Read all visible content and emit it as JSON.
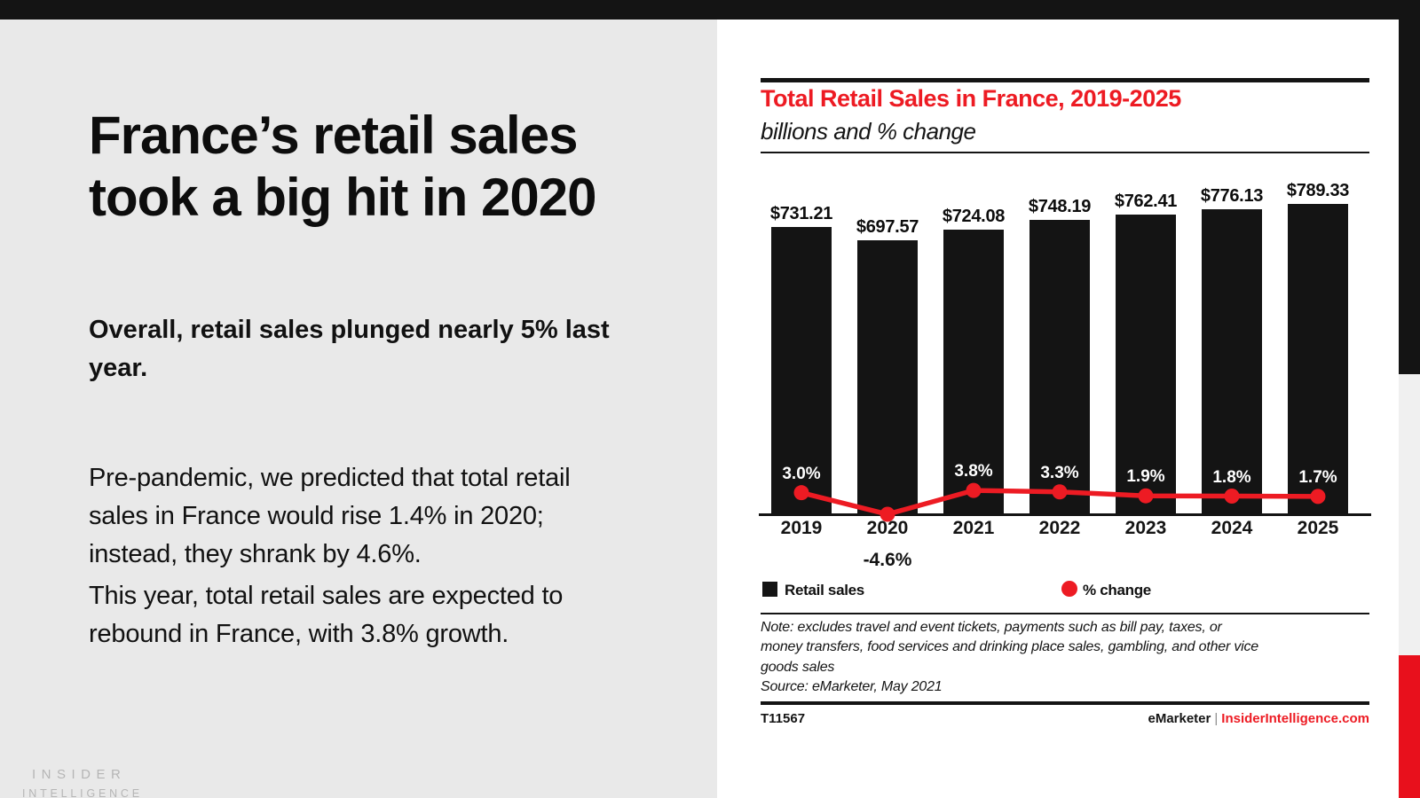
{
  "colors": {
    "accent_red": "#ed1b23",
    "corner_red": "#e8101c",
    "bar_black": "#141414",
    "left_bg": "#e9e9e9",
    "logo_gray": "#b5b5b5"
  },
  "slide": {
    "headline": "France’s retail sales\ntook a big hit in 2020",
    "lead": "Overall, retail sales plunged nearly 5% last\nyear.",
    "paragraph_1": "Pre-pandemic, we predicted that total retail\nsales in France would rise 1.4% in 2020;\ninstead, they shrank by 4.6%.",
    "paragraph_2": "This year, total retail sales are expected to\nrebound in France, with 3.8% growth."
  },
  "logo": {
    "line1": "INSIDER",
    "line2": "INTELLIGENCE"
  },
  "chart_data": {
    "type": "bar",
    "title": "Total Retail Sales in France, 2019-2025",
    "subtitle": "billions and % change",
    "categories": [
      "2019",
      "2020",
      "2021",
      "2022",
      "2023",
      "2024",
      "2025"
    ],
    "series": [
      {
        "name": "Retail sales",
        "type": "bar",
        "unit": "billions of USD",
        "values": [
          731.21,
          697.57,
          724.08,
          748.19,
          762.41,
          776.13,
          789.33
        ],
        "labels": [
          "$731.21",
          "$697.57",
          "$724.08",
          "$748.19",
          "$762.41",
          "$776.13",
          "$789.33"
        ]
      },
      {
        "name": "% change",
        "type": "line",
        "values": [
          3.0,
          -4.6,
          3.8,
          3.3,
          1.9,
          1.8,
          1.7
        ],
        "labels": [
          "3.0%",
          "-4.6%",
          "3.8%",
          "3.3%",
          "1.9%",
          "1.8%",
          "1.7%"
        ]
      }
    ],
    "legend": [
      {
        "label": "Retail sales",
        "marker": "black-square"
      },
      {
        "label": "% change",
        "marker": "red-dot"
      }
    ],
    "note": "Note: excludes travel and event tickets, payments such as bill pay, taxes, or\nmoney transfers, food services and drinking place sales, gambling, and other vice\ngoods sales\nSource: eMarketer, May 2021",
    "footer": {
      "chart_id": "T11567",
      "brand": "eMarketer",
      "divider": "|",
      "site": "InsiderIntelligence.com"
    }
  }
}
